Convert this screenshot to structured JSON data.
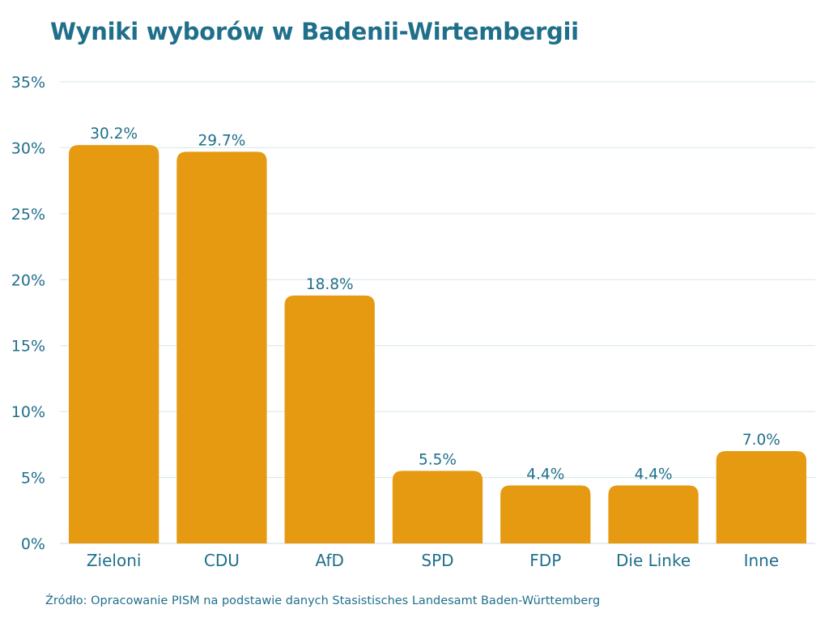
{
  "chart_data": {
    "type": "bar",
    "title": "Wyniki wyborów w Badenii-Wirtembergii",
    "categories": [
      "Zieloni",
      "CDU",
      "AfD",
      "SPD",
      "FDP",
      "Die Linke",
      "Inne"
    ],
    "values": [
      30.2,
      29.7,
      18.8,
      5.5,
      4.4,
      4.4,
      7.0
    ],
    "data_labels": [
      "30.2%",
      "29.7%",
      "18.8%",
      "5.5%",
      "4.4%",
      "4.4%",
      "7.0%"
    ],
    "xlabel": "",
    "ylabel": "",
    "ylim": [
      0,
      35
    ],
    "yticks": [
      0,
      5,
      10,
      15,
      20,
      25,
      30,
      35
    ],
    "ytick_labels": [
      "0%",
      "5%",
      "10%",
      "15%",
      "20%",
      "25%",
      "30%",
      "35%"
    ],
    "grid": true,
    "legend": "none",
    "colors": {
      "bar": "#e59a11",
      "text": "#1f6f8b",
      "grid": "#d6e6ea"
    }
  },
  "source": "Źródło: Opracowanie PISM na podstawie danych Stasistisches Landesamt Baden-Württemberg"
}
